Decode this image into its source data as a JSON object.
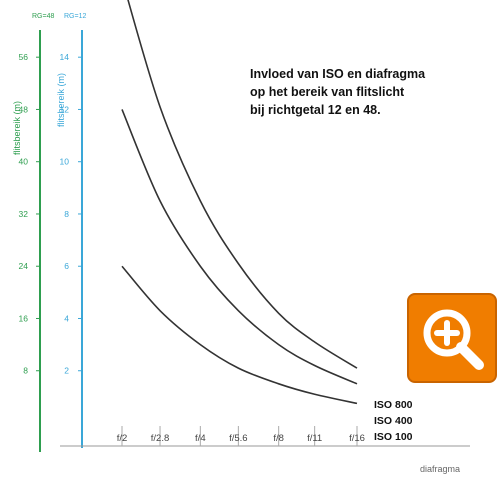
{
  "chart_data": {
    "type": "line",
    "title_lines": [
      "Invloed van ISO en diafragma",
      "op het bereik van flitslicht",
      "bij richtgetal 12 en 48."
    ],
    "xlabel": "diafragma",
    "categories": [
      "f/2",
      "f/2.8",
      "f/4",
      "f/5.6",
      "f/8",
      "f/11",
      "f/16"
    ],
    "x_positions": [
      2,
      2.8,
      4,
      5.6,
      8,
      11,
      16
    ],
    "left_axis": {
      "header": "RG=48",
      "label": "flitsbereik (m)",
      "ticks": [
        "8",
        "16",
        "24",
        "32",
        "40",
        "48",
        "56"
      ],
      "tick_values": [
        8,
        16,
        24,
        32,
        40,
        48,
        56
      ],
      "color": "#2e9e4f"
    },
    "right_axis": {
      "header": "RG=12",
      "label": "flitsbereik (m)",
      "ticks": [
        "2",
        "4",
        "6",
        "8",
        "10",
        "12",
        "14"
      ],
      "tick_values": [
        2,
        4,
        6,
        8,
        10,
        12,
        14
      ],
      "color": "#3aa7d8"
    },
    "ylim": [
      0,
      15.5
    ],
    "series": [
      {
        "name": "ISO 800",
        "values": [
          17,
          12.1,
          8.5,
          6.1,
          4.2,
          3.1,
          2.1
        ]
      },
      {
        "name": "ISO 400",
        "values": [
          12,
          8.5,
          6,
          4.3,
          3,
          2.2,
          1.5
        ]
      },
      {
        "name": "ISO 100",
        "values": [
          6,
          4.3,
          3,
          2.1,
          1.5,
          1.1,
          0.75
        ]
      }
    ],
    "legend_placement": "right-end-of-lines",
    "grid": false
  },
  "zoom_button": {
    "icon": "zoom-in-icon",
    "color": "#f07d00"
  }
}
